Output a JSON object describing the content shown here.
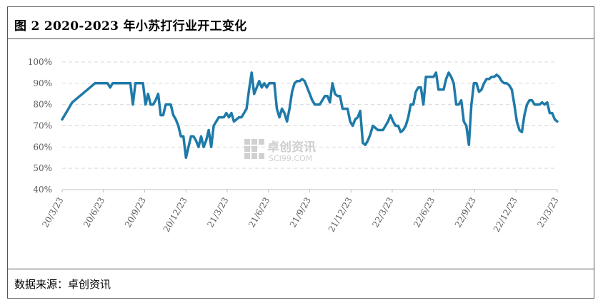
{
  "header": {
    "title": "图 2 2020-2023 年小苏打行业开工变化"
  },
  "footer": {
    "source": "数据来源：卓创资讯"
  },
  "watermark": {
    "main": "卓创资讯",
    "sub": "SCI99.COM"
  },
  "colors": {
    "line": "#1E7AA8",
    "grid": "#D9D9D9",
    "axis": "#BFBFBF",
    "text": "#595959"
  },
  "chart_data": {
    "type": "line",
    "title": "",
    "xlabel": "",
    "ylabel": "",
    "ylim": [
      40,
      100
    ],
    "yticks": [
      "40%",
      "50%",
      "60%",
      "70%",
      "80%",
      "90%",
      "100%"
    ],
    "xticks": [
      "20/3/23",
      "20/6/23",
      "20/9/23",
      "20/12/23",
      "21/3/23",
      "21/6/23",
      "21/9/23",
      "21/12/23",
      "22/3/23",
      "22/6/23",
      "22/9/23",
      "22/12/23",
      "23/3/23"
    ],
    "grid": "horizontal dashed",
    "series": [
      {
        "values": [
          73,
          75,
          77,
          79,
          81,
          82,
          83,
          84,
          85,
          86,
          87,
          88,
          89,
          90,
          90,
          90,
          90,
          90,
          90,
          88,
          90,
          90,
          90,
          90,
          90,
          90,
          90,
          90,
          80,
          90,
          90,
          90,
          90,
          80,
          85,
          80,
          80,
          82,
          85,
          75,
          75,
          80,
          80,
          80,
          75,
          73,
          70,
          65,
          65,
          55,
          60,
          65,
          65,
          63,
          60,
          65,
          60,
          63,
          68,
          60,
          70,
          72,
          74,
          74,
          74,
          76,
          74,
          76,
          72,
          73,
          74,
          74,
          76,
          78,
          87,
          95,
          85,
          88,
          91,
          88,
          90,
          88,
          90,
          90,
          90,
          78,
          74,
          78,
          76,
          72,
          78,
          86,
          90,
          91,
          91,
          92,
          91,
          88,
          85,
          82,
          80,
          80,
          80,
          82,
          84,
          84,
          81,
          90,
          85,
          84,
          84,
          78,
          78,
          78,
          72,
          70,
          73,
          74,
          77,
          62,
          61,
          63,
          66,
          70,
          69,
          68,
          68,
          68,
          70,
          72,
          75,
          72,
          70,
          70,
          67,
          68,
          70,
          74,
          80,
          80,
          86,
          88,
          88,
          80,
          93,
          93,
          93,
          93,
          95,
          87,
          87,
          87,
          92,
          95,
          93,
          90,
          80,
          80,
          82,
          72,
          70,
          61,
          80,
          90,
          90,
          86,
          87,
          90,
          92,
          92,
          93,
          93,
          94,
          93,
          91,
          90,
          90,
          89,
          87,
          80,
          72,
          68,
          67,
          75,
          80,
          82,
          82,
          80,
          80,
          80,
          81,
          80,
          81,
          76,
          76,
          73,
          72
        ]
      }
    ]
  }
}
